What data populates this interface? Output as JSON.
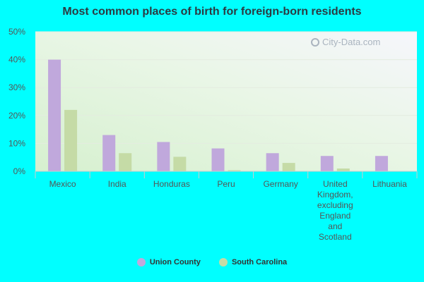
{
  "chart_data": {
    "type": "bar",
    "title": "Most common places of birth for foreign-born residents",
    "categories": [
      "Mexico",
      "India",
      "Honduras",
      "Peru",
      "Germany",
      "United Kingdom, excluding England and Scotland",
      "Lithuania"
    ],
    "category_lines": [
      [
        "Mexico"
      ],
      [
        "India"
      ],
      [
        "Honduras"
      ],
      [
        "Peru"
      ],
      [
        "Germany"
      ],
      [
        "United",
        "Kingdom,",
        "excluding",
        "England",
        "and",
        "Scotland"
      ],
      [
        "Lithuania"
      ]
    ],
    "series": [
      {
        "name": "Union County",
        "color": "#c0a8dc",
        "values": [
          40,
          13,
          10.5,
          8.2,
          6.5,
          5.5,
          5.5
        ]
      },
      {
        "name": "South Carolina",
        "color": "#c5dba6",
        "values": [
          22,
          6.5,
          5.2,
          0.4,
          3,
          1,
          0
        ]
      }
    ],
    "ylim": [
      0,
      50
    ],
    "yticks": [
      0,
      10,
      20,
      30,
      40,
      50
    ],
    "ytick_labels": [
      "0%",
      "10%",
      "20%",
      "30%",
      "40%",
      "50%"
    ],
    "grid": true,
    "legend_position": "bottom"
  },
  "watermark": "City-Data.com"
}
